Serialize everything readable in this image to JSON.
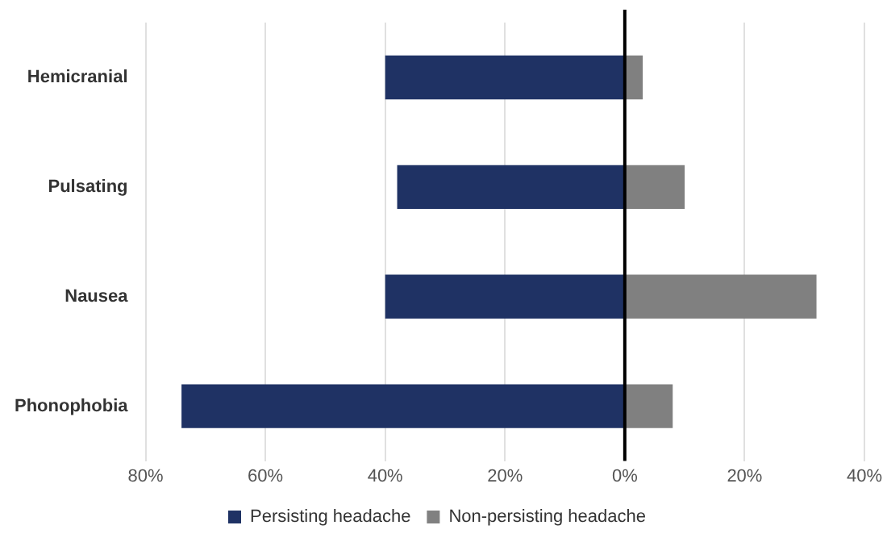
{
  "chart_data": {
    "type": "bar",
    "orientation": "horizontal",
    "stacked": true,
    "categories": [
      "Hemicranial",
      "Pulsating",
      "Nausea",
      "Phonophobia"
    ],
    "series": [
      {
        "name": "Persisting headache",
        "color": "#1f3264",
        "values": [
          -40,
          -38,
          -40,
          -74
        ]
      },
      {
        "name": "Non-persisting headache",
        "color": "#808080",
        "values": [
          3,
          10,
          32,
          8
        ]
      }
    ],
    "xlim": [
      -80,
      40
    ],
    "xticks": [
      {
        "value": -80,
        "label": "80%"
      },
      {
        "value": -60,
        "label": "60%"
      },
      {
        "value": -40,
        "label": "40%"
      },
      {
        "value": -20,
        "label": "20%"
      },
      {
        "value": 0,
        "label": "0%"
      },
      {
        "value": 20,
        "label": "20%"
      },
      {
        "value": 40,
        "label": "40%"
      }
    ],
    "ref_lines": [
      {
        "axis": "x",
        "value": 0,
        "color": "#000000"
      }
    ],
    "grid": "x",
    "legend": "bottom"
  }
}
